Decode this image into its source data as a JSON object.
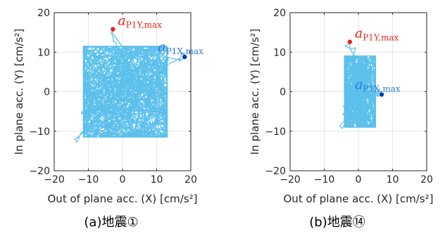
{
  "colors": {
    "trace": "#5bc0eb",
    "y_max_marker": "#e8231c",
    "x_max_marker": "#0b3fa8",
    "y_max_label": "#e8231c",
    "x_max_label": "#2b7bd6",
    "grid": "#e6e6e6",
    "axis": "#262626"
  },
  "chart_data": [
    {
      "type": "scatter",
      "caption": "(a)地震①",
      "xlabel": "Out of plane acc. (X) [cm/s²]",
      "ylabel": "In plane acc. (Y) [cm/s²]",
      "xlim": [
        -20,
        20
      ],
      "ylim": [
        -20,
        20
      ],
      "xticks": [
        -20,
        -10,
        0,
        10,
        20
      ],
      "yticks": [
        -20,
        -10,
        0,
        10,
        20
      ],
      "grid": true,
      "trace_extent": {
        "x": [
          -14,
          18.2
        ],
        "y": [
          -14,
          16
        ]
      },
      "points": [
        {
          "name": "a_P1Y,max",
          "label_main": "a",
          "label_sub": "P1Y,max",
          "x": -2.8,
          "y": 15.8
        },
        {
          "name": "a_P1X,max",
          "label_main": "a",
          "label_sub": "P1X,max",
          "x": 18.2,
          "y": 8.8
        }
      ]
    },
    {
      "type": "scatter",
      "caption": "(b)地震⑭",
      "xlabel": "Out of plane acc. (X) [cm/s²]",
      "ylabel": "In plane acc. (Y) [cm/s²]",
      "xlim": [
        -20,
        20
      ],
      "ylim": [
        -20,
        20
      ],
      "xticks": [
        -20,
        -10,
        0,
        10,
        20
      ],
      "yticks": [
        -20,
        -10,
        0,
        10,
        20
      ],
      "grid": true,
      "trace_extent": {
        "x": [
          -5,
          7
        ],
        "y": [
          -11,
          12.6
        ]
      },
      "points": [
        {
          "name": "a_P1Y,max",
          "label_main": "a",
          "label_sub": "P1Y,max",
          "x": -2.5,
          "y": 12.6
        },
        {
          "name": "a_P1X,max",
          "label_main": "a",
          "label_sub": "P1X,max",
          "x": 6.8,
          "y": -0.7
        }
      ]
    }
  ]
}
